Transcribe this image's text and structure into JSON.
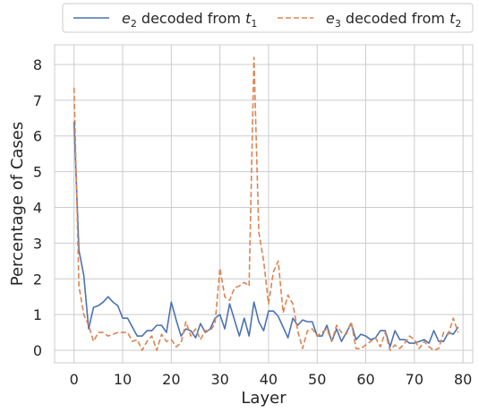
{
  "chart_data": {
    "type": "line",
    "xlabel": "Layer",
    "ylabel": "Percentage of Cases",
    "xlim": [
      -4,
      82
    ],
    "ylim": [
      -0.35,
      8.55
    ],
    "xticks": [
      0,
      10,
      20,
      30,
      40,
      50,
      60,
      70,
      80
    ],
    "yticks": [
      0,
      1,
      2,
      3,
      4,
      5,
      6,
      7,
      8
    ],
    "grid": true,
    "legend_position": "top-center",
    "x": [
      0,
      1,
      2,
      3,
      4,
      5,
      6,
      7,
      8,
      9,
      10,
      11,
      12,
      13,
      14,
      15,
      16,
      17,
      18,
      19,
      20,
      21,
      22,
      23,
      24,
      25,
      26,
      27,
      28,
      29,
      30,
      31,
      32,
      33,
      34,
      35,
      36,
      37,
      38,
      39,
      40,
      41,
      42,
      43,
      44,
      45,
      46,
      47,
      48,
      49,
      50,
      51,
      52,
      53,
      54,
      55,
      56,
      57,
      58,
      59,
      60,
      61,
      62,
      63,
      64,
      65,
      66,
      67,
      68,
      69,
      70,
      71,
      72,
      73,
      74,
      75,
      76,
      77,
      78,
      79
    ],
    "series": [
      {
        "name_math": "e",
        "name_sub": "2",
        "name_mid": " decoded from ",
        "name_math2": "t",
        "name_sub2": "1",
        "color": "#4c72b0",
        "dash": "solid",
        "values": [
          6.4,
          2.8,
          2.1,
          0.6,
          1.2,
          1.25,
          1.35,
          1.5,
          1.35,
          1.25,
          0.9,
          0.9,
          0.65,
          0.4,
          0.4,
          0.55,
          0.55,
          0.7,
          0.7,
          0.5,
          1.35,
          0.85,
          0.4,
          0.6,
          0.55,
          0.35,
          0.75,
          0.5,
          0.6,
          0.9,
          1.0,
          0.6,
          1.3,
          0.85,
          0.4,
          0.9,
          0.4,
          1.35,
          0.8,
          0.55,
          1.1,
          1.1,
          0.95,
          0.65,
          0.35,
          0.9,
          0.7,
          0.85,
          0.8,
          0.8,
          0.4,
          0.4,
          0.7,
          0.25,
          0.6,
          0.25,
          0.5,
          0.75,
          0.3,
          0.45,
          0.4,
          0.3,
          0.35,
          0.55,
          0.55,
          0.1,
          0.55,
          0.3,
          0.3,
          0.2,
          0.2,
          0.25,
          0.3,
          0.2,
          0.55,
          0.25,
          0.25,
          0.5,
          0.45,
          0.65
        ]
      },
      {
        "name_math": "e",
        "name_sub": "3",
        "name_mid": " decoded from ",
        "name_math2": "t",
        "name_sub2": "2",
        "color": "#dd8452",
        "dash": "dashed",
        "values": [
          7.35,
          1.8,
          1.0,
          0.7,
          0.25,
          0.5,
          0.5,
          0.4,
          0.45,
          0.5,
          0.5,
          0.5,
          0.25,
          0.3,
          0.0,
          0.25,
          0.4,
          0.0,
          0.45,
          0.25,
          0.3,
          0.1,
          0.2,
          0.8,
          0.4,
          0.6,
          0.3,
          0.55,
          0.55,
          0.75,
          2.3,
          1.5,
          1.4,
          1.75,
          1.8,
          1.9,
          1.8,
          8.2,
          3.3,
          2.5,
          1.3,
          2.2,
          2.5,
          1.05,
          1.55,
          1.3,
          0.55,
          0.05,
          0.55,
          0.6,
          0.4,
          0.5,
          0.6,
          0.25,
          0.7,
          0.5,
          0.45,
          0.8,
          0.05,
          0.05,
          0.15,
          0.25,
          0.35,
          0.1,
          0.5,
          0.0,
          0.15,
          0.05,
          0.2,
          0.4,
          0.3,
          0.05,
          0.25,
          0.1,
          0.0,
          0.05,
          0.5,
          0.45,
          0.9,
          0.5
        ]
      }
    ]
  }
}
